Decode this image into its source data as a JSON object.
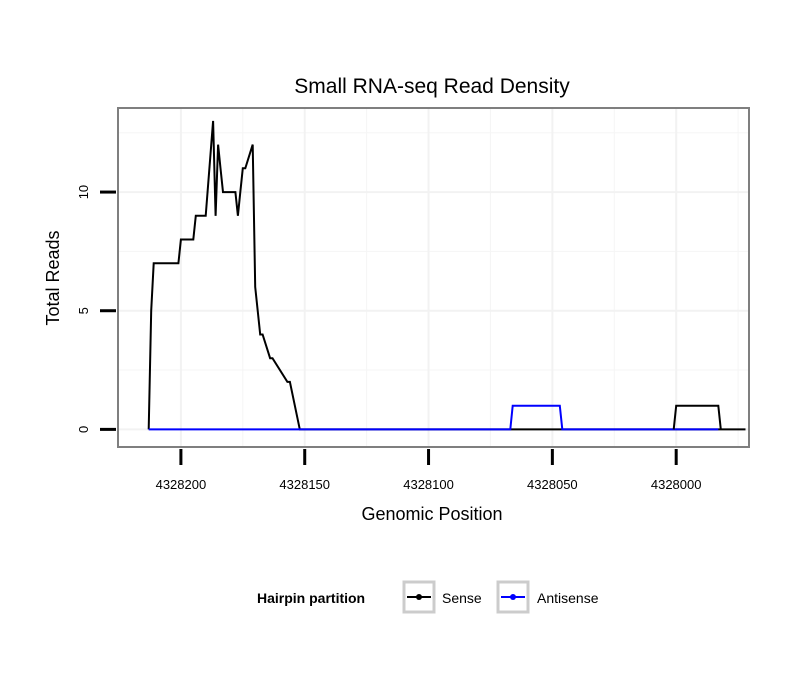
{
  "chart_data": {
    "type": "line",
    "title": "Small RNA-seq Read Density",
    "xlabel": "Genomic Position",
    "ylabel": "Total Reads",
    "x_reversed": true,
    "xlim": [
      4328225,
      4327971
    ],
    "ylim": [
      -0.7,
      13.5
    ],
    "x_ticks": [
      4328200,
      4328150,
      4328100,
      4328050,
      4328000
    ],
    "x_tick_labels": [
      "4328200",
      "4328150",
      "4328100",
      "4328050",
      "4328000"
    ],
    "y_ticks": [
      0,
      5,
      10
    ],
    "y_tick_labels": [
      "0",
      "5",
      "10"
    ],
    "grid": true,
    "legend": {
      "title": "Hairpin partition",
      "position": "bottom",
      "entries": [
        "Sense",
        "Antisense"
      ]
    },
    "series": [
      {
        "name": "Sense",
        "color": "#000000",
        "x": [
          4328213,
          4328212,
          4328211,
          4328210,
          4328201,
          4328200,
          4328199,
          4328195,
          4328194,
          4328191,
          4328190,
          4328187,
          4328186,
          4328186,
          4328185,
          4328184,
          4328183,
          4328178,
          4328177,
          4328176,
          4328175,
          4328174,
          4328171,
          4328170,
          4328169,
          4328168,
          4328167,
          4328164,
          4328163,
          4328157,
          4328156,
          4328152,
          4328151,
          4327972
        ],
        "y": [
          0,
          5,
          7,
          7,
          7,
          8,
          8,
          8,
          9,
          9,
          9,
          13,
          9,
          9,
          12,
          11,
          10,
          10,
          9,
          10,
          11,
          11,
          12,
          6,
          5,
          4,
          4,
          3,
          3,
          2,
          2,
          0,
          0,
          0
        ]
      },
      {
        "name": "Antisense",
        "color": "#0000ff",
        "x": [
          4328213,
          4328067,
          4328066,
          4328047,
          4328046,
          4327984,
          4327983,
          4327983
        ],
        "y": [
          0,
          0,
          1,
          1,
          0,
          0,
          0,
          0
        ]
      },
      {
        "name": "Sense",
        "color": "#000000",
        "x": [
          4328001,
          4328000,
          4327983,
          4327982
        ],
        "y": [
          0,
          1,
          1,
          0
        ]
      }
    ]
  }
}
